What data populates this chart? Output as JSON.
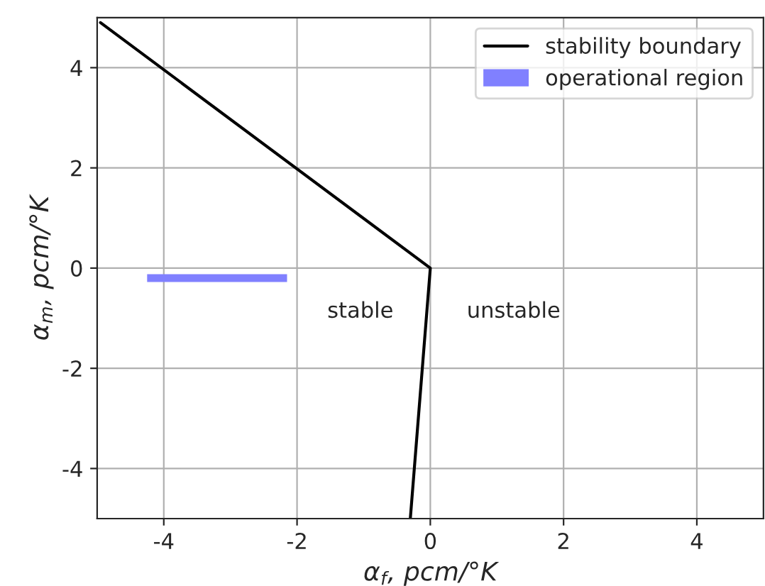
{
  "chart_data": {
    "type": "line",
    "xlabel": "α$_{f}$, pcm/°K",
    "ylabel": "α$_{m}$, pcm/°K",
    "series": [
      {
        "name": "stability boundary",
        "color": "#000000",
        "x": [
          -4.95,
          0,
          -0.3
        ],
        "values": [
          4.9,
          0,
          -5
        ]
      },
      {
        "name": "operational region",
        "type": "line",
        "color": "#8080ff",
        "x": [
          -4.25,
          -2.15
        ],
        "values": [
          -0.2,
          -0.2
        ]
      }
    ],
    "annotations": [
      "stable",
      "unstable"
    ],
    "xlim": [
      -5,
      5
    ],
    "ylim": [
      -5,
      5
    ],
    "xticks": [
      -4,
      -2,
      0,
      2,
      4
    ],
    "yticks": [
      -4,
      -2,
      0,
      2,
      4
    ],
    "grid": true,
    "legend": "top right",
    "line_style": "solid",
    "marker": "none"
  }
}
